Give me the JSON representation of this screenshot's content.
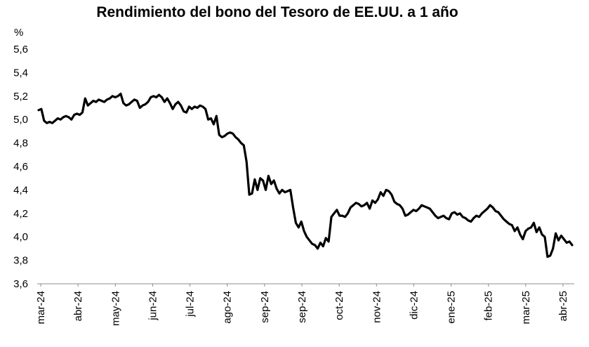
{
  "chart_data": {
    "type": "line",
    "title": "Rendimiento del bono del Tesoro de EE.UU. a 1 año",
    "ylabel": "%",
    "xlabel": "",
    "ylim": [
      3.6,
      5.6
    ],
    "y_ticks": [
      "5,6",
      "5,4",
      "5,2",
      "5,0",
      "4,8",
      "4,6",
      "4,4",
      "4,2",
      "4,0",
      "3,8",
      "3,6"
    ],
    "x_ticks": [
      "mar-24",
      "abr-24",
      "may-24",
      "jun-24",
      "jul-24",
      "ago-24",
      "sep-24",
      "sep-24",
      "oct-24",
      "nov-24",
      "dic-24",
      "ene-25",
      "feb-25",
      "mar-25",
      "abr-25"
    ],
    "grid": false,
    "legend": "none",
    "line_color": "#000000",
    "series": [
      {
        "values": [
          5.08,
          5.09,
          4.99,
          4.97,
          4.98,
          4.97,
          4.99,
          5.01,
          5.0,
          5.02,
          5.03,
          5.02,
          5.0,
          5.04,
          5.05,
          5.04,
          5.06,
          5.18,
          5.12,
          5.14,
          5.16,
          5.15,
          5.17,
          5.16,
          5.15,
          5.17,
          5.18,
          5.2,
          5.19,
          5.2,
          5.22,
          5.14,
          5.12,
          5.13,
          5.15,
          5.17,
          5.16,
          5.1,
          5.12,
          5.13,
          5.15,
          5.19,
          5.2,
          5.19,
          5.21,
          5.19,
          5.15,
          5.18,
          5.14,
          5.09,
          5.13,
          5.15,
          5.12,
          5.07,
          5.06,
          5.11,
          5.09,
          5.11,
          5.1,
          5.12,
          5.11,
          5.09,
          5.0,
          5.01,
          4.96,
          5.03,
          4.87,
          4.85,
          4.86,
          4.88,
          4.89,
          4.88,
          4.85,
          4.83,
          4.8,
          4.78,
          4.64,
          4.36,
          4.37,
          4.49,
          4.4,
          4.5,
          4.48,
          4.4,
          4.52,
          4.45,
          4.48,
          4.41,
          4.37,
          4.4,
          4.38,
          4.39,
          4.4,
          4.25,
          4.12,
          4.08,
          4.13,
          4.05,
          4.0,
          3.97,
          3.94,
          3.93,
          3.9,
          3.95,
          3.92,
          3.99,
          3.96,
          4.17,
          4.2,
          4.23,
          4.18,
          4.18,
          4.17,
          4.2,
          4.25,
          4.27,
          4.29,
          4.28,
          4.26,
          4.27,
          4.29,
          4.24,
          4.31,
          4.29,
          4.32,
          4.38,
          4.35,
          4.4,
          4.39,
          4.36,
          4.3,
          4.28,
          4.27,
          4.24,
          4.18,
          4.19,
          4.21,
          4.23,
          4.22,
          4.24,
          4.27,
          4.26,
          4.25,
          4.24,
          4.21,
          4.18,
          4.16,
          4.17,
          4.18,
          4.16,
          4.15,
          4.2,
          4.21,
          4.19,
          4.2,
          4.17,
          4.16,
          4.14,
          4.13,
          4.16,
          4.18,
          4.17,
          4.2,
          4.22,
          4.24,
          4.27,
          4.25,
          4.22,
          4.21,
          4.18,
          4.15,
          4.13,
          4.11,
          4.1,
          4.05,
          4.08,
          4.02,
          3.98,
          4.05,
          4.07,
          4.08,
          4.12,
          4.04,
          4.08,
          4.02,
          4.0,
          3.83,
          3.84,
          3.9,
          4.03,
          3.97,
          4.01,
          3.98,
          3.95,
          3.96,
          3.93
        ]
      }
    ]
  }
}
